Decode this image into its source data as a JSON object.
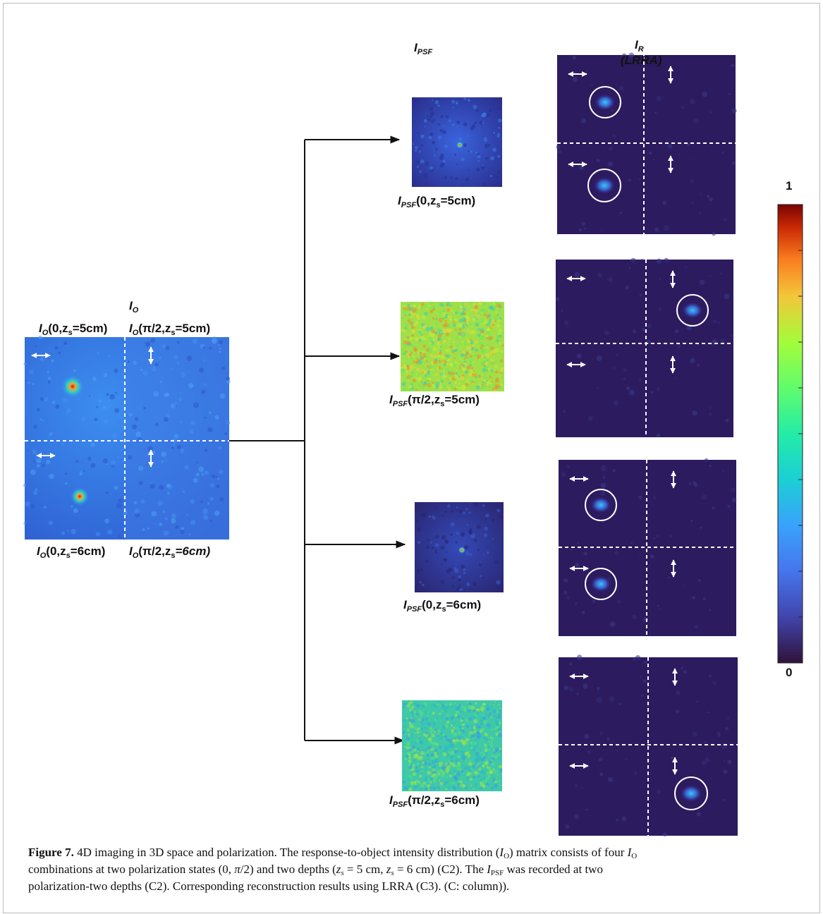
{
  "figure": {
    "io_header": [
      {
        "text": "I",
        "style": "italic"
      },
      {
        "text": "O",
        "style": "italic sub"
      }
    ],
    "io_labels": [
      [
        {
          "text": "I",
          "style": "italic"
        },
        {
          "text": "O",
          "style": "italic sub"
        },
        {
          "text": "(0,z",
          "style": "plain"
        },
        {
          "text": "s",
          "style": "sub"
        },
        {
          "text": "=5cm)",
          "style": "plain"
        }
      ],
      [
        {
          "text": "I",
          "style": "italic"
        },
        {
          "text": "O",
          "style": "italic sub"
        },
        {
          "text": "(π/2,z",
          "style": "plain"
        },
        {
          "text": "s",
          "style": "sub"
        },
        {
          "text": "=5cm)",
          "style": "plain"
        }
      ],
      [
        {
          "text": "I",
          "style": "italic"
        },
        {
          "text": "O",
          "style": "italic sub"
        },
        {
          "text": "(0,z",
          "style": "plain"
        },
        {
          "text": "s",
          "style": "sub"
        },
        {
          "text": "=6cm)",
          "style": "plain"
        }
      ],
      [
        {
          "text": "I",
          "style": "italic"
        },
        {
          "text": "O",
          "style": "italic sub"
        },
        {
          "text": "(π/2,z",
          "style": "plain"
        },
        {
          "text": "s",
          "style": "sub"
        },
        {
          "text": "=6cm)",
          "style": "italic"
        }
      ]
    ],
    "psf_header": [
      {
        "text": "I",
        "style": "italic"
      },
      {
        "text": "PSF",
        "style": "italic sub"
      }
    ],
    "psf_labels": [
      [
        {
          "text": "I",
          "style": "italic"
        },
        {
          "text": "PSF",
          "style": "italic sub"
        },
        {
          "text": "(0,z",
          "style": "plain"
        },
        {
          "text": "s",
          "style": "sub"
        },
        {
          "text": "=5cm)",
          "style": "plain"
        }
      ],
      [
        {
          "text": "I",
          "style": "italic"
        },
        {
          "text": "PSF",
          "style": "italic sub"
        },
        {
          "text": "(π/2,z",
          "style": "plain"
        },
        {
          "text": "s",
          "style": "sub"
        },
        {
          "text": "=5cm)",
          "style": "plain"
        }
      ],
      [
        {
          "text": "I",
          "style": "italic"
        },
        {
          "text": "PSF",
          "style": "italic sub"
        },
        {
          "text": "(0,z",
          "style": "plain"
        },
        {
          "text": "s",
          "style": "sub"
        },
        {
          "text": "=6cm)",
          "style": "plain"
        }
      ],
      [
        {
          "text": "I",
          "style": "italic"
        },
        {
          "text": "PSF",
          "style": "italic sub"
        },
        {
          "text": "(π/2,z",
          "style": "plain"
        },
        {
          "text": "s",
          "style": "sub"
        },
        {
          "text": "=6cm)",
          "style": "plain"
        }
      ]
    ],
    "ir_header": [
      {
        "text": "I",
        "style": "italic"
      },
      {
        "text": "R",
        "style": "italic sub"
      }
    ],
    "ir_subheader": [
      {
        "text": "(LRRA)",
        "style": "italic"
      }
    ],
    "colorbar": {
      "max_label": "1",
      "min_label": "0"
    },
    "caption": [
      [
        {
          "text": "Figure 7.",
          "style": "bold"
        },
        {
          "text": " 4D imaging in 3D space and polarization. The response-to-object intensity distribution (",
          "style": "plain"
        },
        {
          "text": "I",
          "style": "italic"
        },
        {
          "text": "O",
          "style": "sub"
        },
        {
          "text": ") matrix consists of four ",
          "style": "plain"
        },
        {
          "text": "I",
          "style": "italic"
        },
        {
          "text": "O",
          "style": "sub"
        }
      ],
      [
        {
          "text": "combinations at two polarization states (0, ",
          "style": "plain"
        },
        {
          "text": "π",
          "style": "italic"
        },
        {
          "text": "/2) and two depths (",
          "style": "plain"
        },
        {
          "text": "z",
          "style": "italic"
        },
        {
          "text": "s",
          "style": "italic sub"
        },
        {
          "text": " = 5 cm, ",
          "style": "plain"
        },
        {
          "text": "z",
          "style": "italic"
        },
        {
          "text": "s",
          "style": "italic sub"
        },
        {
          "text": " = 6 cm) (C2). The ",
          "style": "plain"
        },
        {
          "text": "I",
          "style": "italic"
        },
        {
          "text": "PSF",
          "style": "sub"
        },
        {
          "text": " was recorded at two",
          "style": "plain"
        }
      ],
      [
        {
          "text": "polarization-two depths (C2). Corresponding reconstruction results using LRRA (C3). (C: column)).",
          "style": "plain"
        }
      ]
    ]
  }
}
